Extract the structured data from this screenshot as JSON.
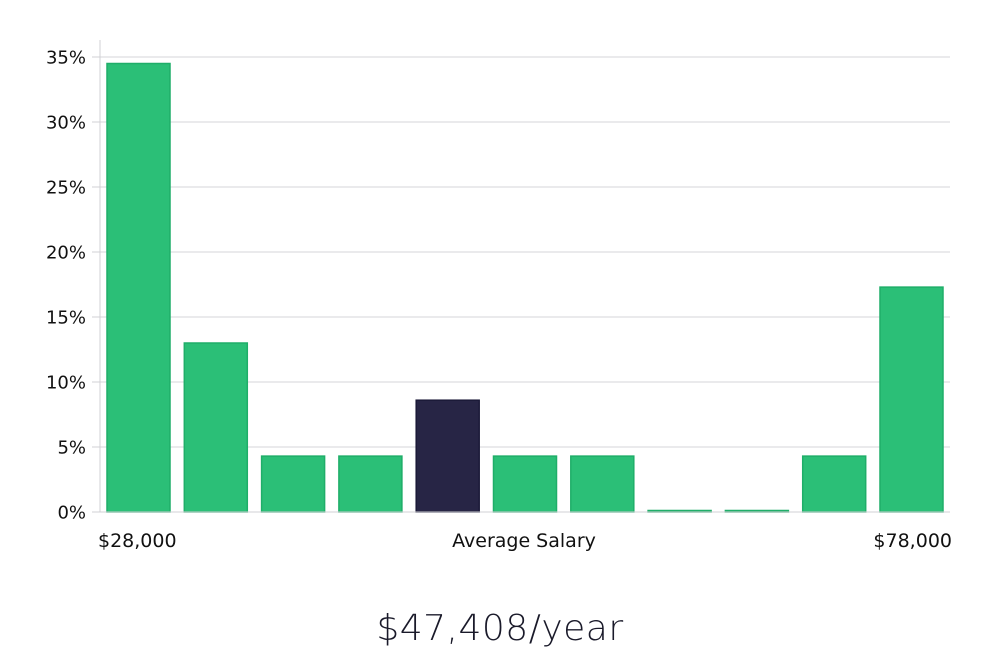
{
  "chart_data": {
    "type": "bar",
    "categories": [
      "1",
      "2",
      "3",
      "4",
      "5",
      "6",
      "7",
      "8",
      "9",
      "10",
      "11"
    ],
    "values": [
      34.5,
      13.0,
      4.3,
      4.3,
      8.6,
      4.3,
      4.3,
      0,
      0,
      4.3,
      17.3
    ],
    "highlight_index": 4,
    "ylim": [
      0,
      35
    ],
    "yticks": [
      0,
      5,
      10,
      15,
      20,
      25,
      30,
      35
    ],
    "ytick_suffix": "%",
    "x_min_label": "$28,000",
    "x_center_label": "Average Salary",
    "x_max_label": "$78,000",
    "grid": true,
    "colors": {
      "bar": "#2bbf77",
      "bar_edge": "#1fae69",
      "highlight": "#272545",
      "grid": "#e3e3e6",
      "axis": "#d0d0d4"
    }
  },
  "summary": {
    "salary_text": "$47,408/year"
  }
}
